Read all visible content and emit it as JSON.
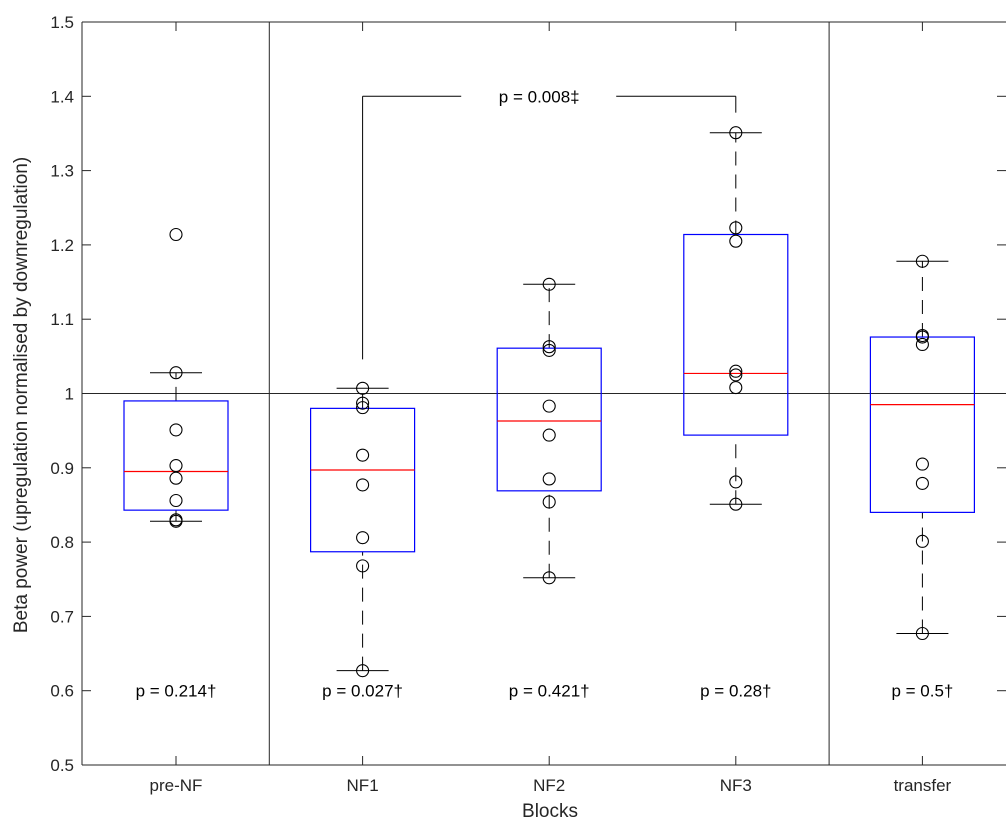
{
  "chart_data": {
    "type": "box",
    "xlabel": "Blocks",
    "ylabel": "Beta power (upregulation normalised by downregulation)",
    "ylim": [
      0.5,
      1.5
    ],
    "yticks": [
      "0.5",
      "0.6",
      "0.7",
      "0.8",
      "0.9",
      "1",
      "1.1",
      "1.2",
      "1.3",
      "1.4",
      "1.5"
    ],
    "reference_line": 1.0,
    "grid": false,
    "colors": {
      "box": "#0000ff",
      "median": "#ff0000",
      "whisker": "#000000",
      "points": "#000000",
      "axes": "#262626"
    },
    "categories": [
      "pre-NF",
      "NF1",
      "NF2",
      "NF3",
      "transfer"
    ],
    "boxes": [
      {
        "category": "pre-NF",
        "whisker_low": 0.828,
        "q1": 0.843,
        "median": 0.895,
        "q3": 0.99,
        "whisker_high": 1.028,
        "outliers": [
          1.214
        ],
        "points": [
          1.214,
          1.028,
          0.951,
          0.903,
          0.886,
          0.856,
          0.83,
          0.828
        ],
        "p_label": "p = 0.214†"
      },
      {
        "category": "NF1",
        "whisker_low": 0.627,
        "q1": 0.787,
        "median": 0.897,
        "q3": 0.98,
        "whisker_high": 1.007,
        "outliers": [],
        "points": [
          1.007,
          0.987,
          0.981,
          0.917,
          0.877,
          0.806,
          0.768,
          0.627
        ],
        "p_label": "p = 0.027†"
      },
      {
        "category": "NF2",
        "whisker_low": 0.752,
        "q1": 0.869,
        "median": 0.963,
        "q3": 1.061,
        "whisker_high": 1.147,
        "outliers": [],
        "points": [
          1.147,
          1.063,
          1.058,
          0.983,
          0.944,
          0.885,
          0.854,
          0.752
        ],
        "p_label": "p = 0.421†"
      },
      {
        "category": "NF3",
        "whisker_low": 0.851,
        "q1": 0.944,
        "median": 1.027,
        "q3": 1.214,
        "whisker_high": 1.351,
        "outliers": [],
        "points": [
          1.351,
          1.223,
          1.205,
          1.03,
          1.025,
          1.008,
          0.881,
          0.851
        ],
        "p_label": "p = 0.28†"
      },
      {
        "category": "transfer",
        "whisker_low": 0.677,
        "q1": 0.84,
        "median": 0.985,
        "q3": 1.076,
        "whisker_high": 1.178,
        "outliers": [],
        "points": [
          1.178,
          1.078,
          1.076,
          1.066,
          0.905,
          0.879,
          0.801,
          0.677
        ],
        "p_label": "p = 0.5†"
      }
    ],
    "comparison": {
      "from": "NF1",
      "to": "NF3",
      "level": 1.4,
      "label": "p = 0.008‡"
    },
    "separators_between": [
      [
        "pre-NF",
        "NF1"
      ],
      [
        "NF3",
        "transfer"
      ]
    ]
  }
}
